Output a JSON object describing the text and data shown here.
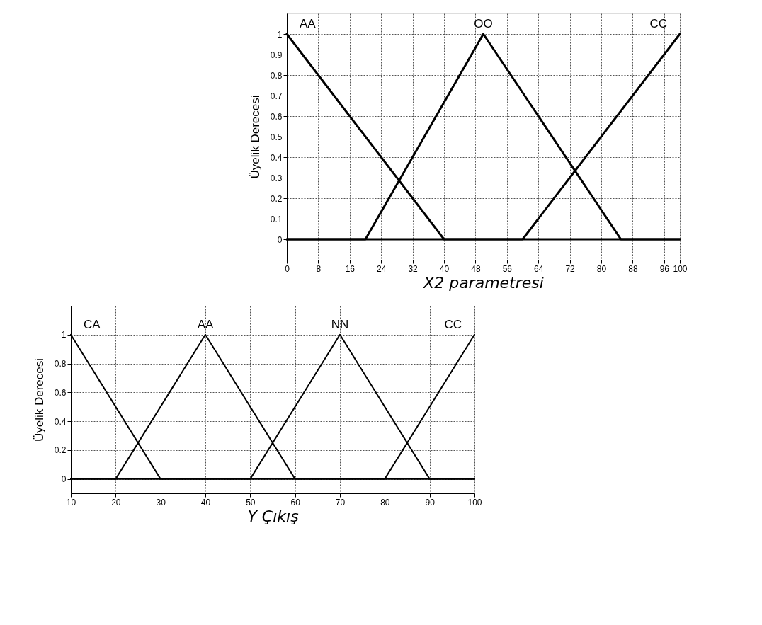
{
  "chart_data": [
    {
      "type": "line",
      "xlabel": "X2 parametresi",
      "ylabel": "Üyelik Derecesi",
      "xlim": [
        0,
        100
      ],
      "ylim": [
        -0.1,
        1.1
      ],
      "xticks": [
        0,
        8,
        16,
        24,
        32,
        40,
        48,
        56,
        64,
        72,
        80,
        88,
        96,
        100
      ],
      "yticks": [
        0,
        0.1,
        0.2,
        0.3,
        0.4,
        0.5,
        0.6,
        0.7,
        0.8,
        0.9,
        1
      ],
      "grid": true,
      "legend": false,
      "line_style": "solid",
      "marker": "none",
      "series": [
        {
          "name": "AA",
          "color": "#000000",
          "x": [
            0,
            40,
            100
          ],
          "values": [
            1,
            0,
            0
          ]
        },
        {
          "name": "OO",
          "color": "#000000",
          "x": [
            0,
            20,
            50,
            85,
            100
          ],
          "values": [
            0,
            0,
            1,
            0,
            0
          ]
        },
        {
          "name": "CC",
          "color": "#000000",
          "x": [
            0,
            60,
            100
          ],
          "values": [
            0,
            0,
            1
          ]
        }
      ]
    },
    {
      "type": "line",
      "xlabel": "Y Çıkış",
      "ylabel": "Üyelik Derecesi",
      "xlim": [
        10,
        100
      ],
      "ylim": [
        -0.1,
        1.2
      ],
      "xticks": [
        10,
        20,
        30,
        40,
        50,
        60,
        70,
        80,
        90,
        100
      ],
      "yticks": [
        0,
        0.2,
        0.4,
        0.6,
        0.8,
        1
      ],
      "grid": true,
      "legend": false,
      "line_style": "solid",
      "marker": "none",
      "series": [
        {
          "name": "CA",
          "color": "#000000",
          "x": [
            10,
            30,
            100
          ],
          "values": [
            1,
            0,
            0
          ]
        },
        {
          "name": "AA",
          "color": "#000000",
          "x": [
            10,
            20,
            40,
            60,
            100
          ],
          "values": [
            0,
            0,
            1,
            0,
            0
          ]
        },
        {
          "name": "NN",
          "color": "#000000",
          "x": [
            10,
            50,
            70,
            90,
            100
          ],
          "values": [
            0,
            0,
            1,
            0,
            0
          ]
        },
        {
          "name": "CC",
          "color": "#000000",
          "x": [
            10,
            80,
            100
          ],
          "values": [
            0,
            0,
            1
          ]
        }
      ]
    }
  ]
}
